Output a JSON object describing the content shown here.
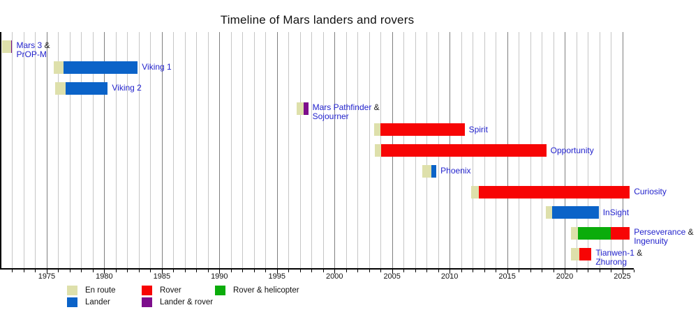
{
  "chart_data": {
    "type": "gantt-timeline",
    "title": "Timeline of Mars landers and rovers",
    "x_axis": {
      "min": 1971,
      "max": 2026,
      "major_tick_interval": 5,
      "minor_tick_interval": 1,
      "tick_labels": [
        "1975",
        "1980",
        "1985",
        "1990",
        "1995",
        "2000",
        "2005",
        "2010",
        "2015",
        "2020",
        "2025"
      ],
      "grid": "vertical, yearly (darker every 5 years)"
    },
    "colors": {
      "en_route": "#dee0ab",
      "lander": "#0b63c8",
      "rover": "#f70505",
      "lander_rover": "#7d0e8c",
      "rover_helicopter": "#0bac0b",
      "mission_label": "#2222cc",
      "suffix_text": "#1a1a1a",
      "grid_minor": "#c6c6c6",
      "grid_major": "#7f7f7f",
      "axis": "#000000"
    },
    "legend": [
      {
        "key": "en_route",
        "label": "En route"
      },
      {
        "key": "lander",
        "label": "Lander"
      },
      {
        "key": "rover",
        "label": "Rover"
      },
      {
        "key": "lander_rover",
        "label": "Lander & rover"
      },
      {
        "key": "rover_helicopter",
        "label": "Rover & helicopter"
      }
    ],
    "missions": [
      {
        "link": "Mars 3",
        "suffix": " &",
        "line2": "PrOP-M",
        "segments": [
          {
            "type": "en_route",
            "start": 1971.1,
            "end": 1971.88
          },
          {
            "type": "lander_rover",
            "start": 1971.88,
            "end": 1972.0
          }
        ]
      },
      {
        "link": "Viking 1",
        "suffix": "",
        "line2": "",
        "segments": [
          {
            "type": "en_route",
            "start": 1975.6,
            "end": 1976.45
          },
          {
            "type": "lander",
            "start": 1976.45,
            "end": 1982.9
          }
        ]
      },
      {
        "link": "Viking 2",
        "suffix": "",
        "line2": "",
        "segments": [
          {
            "type": "en_route",
            "start": 1975.7,
            "end": 1976.65
          },
          {
            "type": "lander",
            "start": 1976.65,
            "end": 1980.3
          }
        ]
      },
      {
        "link": "Mars Pathfinder",
        "suffix": " &",
        "line2": "Sojourner",
        "segments": [
          {
            "type": "en_route",
            "start": 1996.7,
            "end": 1997.3
          },
          {
            "type": "lander_rover",
            "start": 1997.3,
            "end": 1997.72
          }
        ]
      },
      {
        "link": "Spirit",
        "suffix": "",
        "line2": "",
        "segments": [
          {
            "type": "en_route",
            "start": 2003.44,
            "end": 2004.0
          },
          {
            "type": "rover",
            "start": 2004.0,
            "end": 2011.3
          }
        ]
      },
      {
        "link": "Opportunity",
        "suffix": "",
        "line2": "",
        "segments": [
          {
            "type": "en_route",
            "start": 2003.5,
            "end": 2004.05
          },
          {
            "type": "rover",
            "start": 2004.05,
            "end": 2018.4
          }
        ]
      },
      {
        "link": "Phoenix",
        "suffix": "",
        "line2": "",
        "segments": [
          {
            "type": "en_route",
            "start": 2007.6,
            "end": 2008.4
          },
          {
            "type": "lander",
            "start": 2008.4,
            "end": 2008.85
          }
        ]
      },
      {
        "link": "Curiosity",
        "suffix": "",
        "line2": "",
        "segments": [
          {
            "type": "en_route",
            "start": 2011.9,
            "end": 2012.55
          },
          {
            "type": "rover",
            "start": 2012.55,
            "end": 2025.65
          }
        ]
      },
      {
        "link": "InSight",
        "suffix": "",
        "line2": "",
        "segments": [
          {
            "type": "en_route",
            "start": 2018.35,
            "end": 2018.9
          },
          {
            "type": "lander",
            "start": 2018.9,
            "end": 2022.95
          }
        ]
      },
      {
        "link": "Perseverance",
        "suffix": " &",
        "line2": "Ingenuity",
        "segments": [
          {
            "type": "en_route",
            "start": 2020.55,
            "end": 2021.12
          },
          {
            "type": "rover_helicopter",
            "start": 2021.12,
            "end": 2024.0
          },
          {
            "type": "rover",
            "start": 2024.0,
            "end": 2025.65
          }
        ]
      },
      {
        "link": "Tianwen-1",
        "suffix": " &",
        "line2": "Zhurong",
        "segments": [
          {
            "type": "en_route",
            "start": 2020.55,
            "end": 2021.28
          },
          {
            "type": "rover",
            "start": 2021.28,
            "end": 2022.32
          }
        ]
      }
    ]
  }
}
